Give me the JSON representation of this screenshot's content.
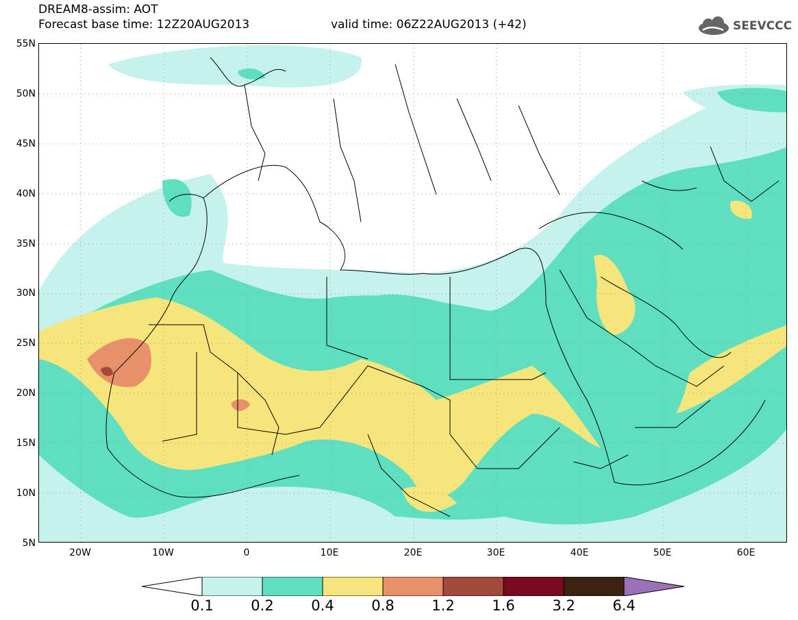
{
  "header": {
    "title_line1": "DREAM8-assim: AOT",
    "title_line2": "Forecast base time: 12Z20AUG2013",
    "valid_time": "valid time: 06Z22AUG2013 (+42)"
  },
  "logo": {
    "text": "SEEVCCC",
    "icon": "cloud-icon"
  },
  "axes": {
    "lat_labels": [
      "55N",
      "50N",
      "45N",
      "40N",
      "35N",
      "30N",
      "25N",
      "20N",
      "15N",
      "10N",
      "5N"
    ],
    "lon_labels": [
      "20W",
      "10W",
      "0",
      "10E",
      "20E",
      "30E",
      "40E",
      "50E",
      "60E"
    ],
    "lat_range": [
      5,
      55
    ],
    "lon_range": [
      -25,
      65
    ],
    "grid": "dotted"
  },
  "colorbar": {
    "labels": [
      "0.1",
      "0.2",
      "0.4",
      "0.8",
      "1.2",
      "1.6",
      "3.2",
      "6.4"
    ],
    "colors": [
      "#ffffff",
      "#c6f2ec",
      "#5ee0c0",
      "#f5e57a",
      "#e8906a",
      "#a24a3a",
      "#7a0a20",
      "#3a2410",
      "#9b72b8"
    ]
  }
}
